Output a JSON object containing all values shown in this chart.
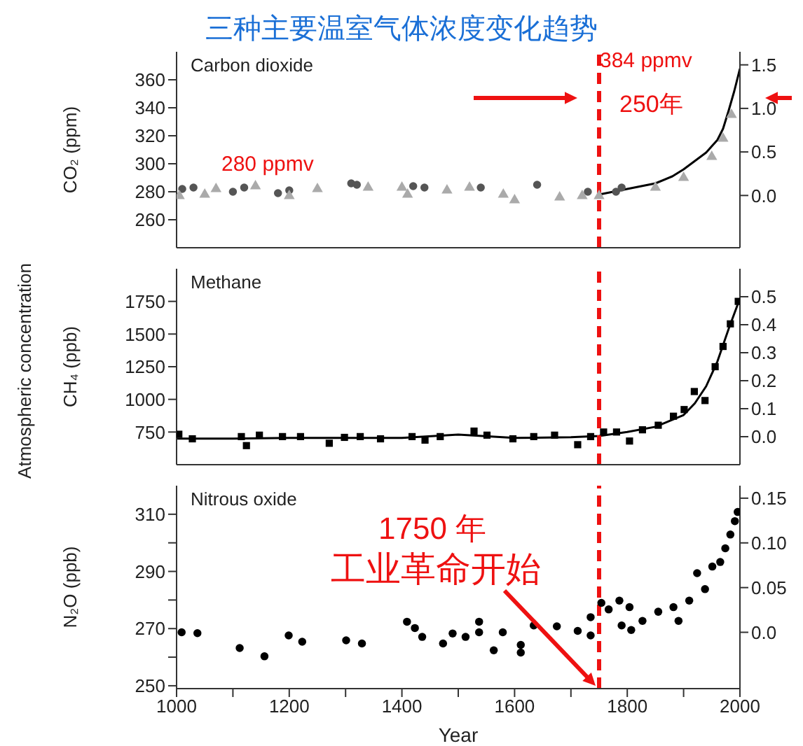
{
  "chart_data": [
    {
      "type": "scatter",
      "title": "三种主要温室气体浓度变化趋势",
      "ylabel": "CO₂ (ppm)",
      "xlim": [
        1000,
        2000
      ],
      "xticks": [
        {
          "value": 1000,
          "label": null
        },
        {
          "value": 1200,
          "label": null
        },
        {
          "value": 1400,
          "label": null
        },
        {
          "value": 1600,
          "label": null
        },
        {
          "value": 1800,
          "label": null
        },
        {
          "value": 2000,
          "label": null
        }
      ],
      "ylim": [
        240,
        380
      ],
      "yticks": [
        260,
        280,
        300,
        320,
        340,
        360
      ],
      "y2lim": [
        -0.6,
        1.65
      ],
      "y2ticks": [
        {
          "value": 0,
          "label": "0.0"
        },
        {
          "value": 0.5,
          "label": "0.5"
        },
        {
          "value": 1,
          "label": "1.0"
        },
        {
          "value": 1.5,
          "label": "1.5"
        }
      ],
      "tick_labels": "y",
      "annotations": [
        "Carbon dioxide",
        "280 ppmv",
        "384 ppmv",
        "250年"
      ],
      "ref_lines": [
        {
          "axis": "x",
          "value": 1750,
          "color": "#ee1111",
          "line_style": "dashed"
        }
      ],
      "series": [
        {
          "marker": "circle",
          "color": "#555555",
          "x": [
            1010,
            1030,
            1100,
            1120,
            1180,
            1200,
            1310,
            1320,
            1420,
            1440,
            1540,
            1640,
            1730,
            1780,
            1790
          ],
          "values": [
            282,
            283,
            280,
            283,
            279,
            281,
            286,
            285,
            284,
            283,
            283,
            285,
            280,
            280,
            283
          ]
        },
        {
          "marker": "triangle",
          "color": "#aaaaaa",
          "x": [
            1005,
            1050,
            1070,
            1140,
            1200,
            1250,
            1340,
            1400,
            1410,
            1480,
            1520,
            1580,
            1600,
            1680,
            1720,
            1750,
            1850,
            1900,
            1950,
            1970,
            1985
          ],
          "values": [
            277,
            278,
            282,
            284,
            277,
            282,
            283,
            283,
            278,
            281,
            283,
            278,
            274,
            276,
            277,
            277,
            283,
            290,
            305,
            318,
            335
          ]
        },
        {
          "type": "line",
          "color": "#000000",
          "x": [
            1750,
            1800,
            1850,
            1880,
            1900,
            1920,
            1940,
            1960,
            1970,
            1980,
            1990,
            2000
          ],
          "values": [
            278,
            282,
            286,
            291,
            296,
            302,
            308,
            317,
            325,
            338,
            352,
            368
          ]
        }
      ]
    },
    {
      "type": "scatter",
      "ylabel": "CH₄ (ppb)",
      "xlim": [
        1000,
        2000
      ],
      "xticks": [
        {
          "value": 1000,
          "label": null
        },
        {
          "value": 1200,
          "label": null
        },
        {
          "value": 1400,
          "label": null
        },
        {
          "value": 1600,
          "label": null
        },
        {
          "value": 1800,
          "label": null
        },
        {
          "value": 2000,
          "label": null
        }
      ],
      "ylim": [
        500,
        2000
      ],
      "yticks": [
        750,
        1000,
        1250,
        1500,
        1750
      ],
      "y2lim": [
        -0.1,
        0.6
      ],
      "y2ticks": [
        {
          "value": 0,
          "label": "0.0"
        },
        0.1,
        0.2,
        0.3,
        0.4,
        0.5
      ],
      "tick_labels": "y",
      "annotations": [
        "Methane",
        "Atmospheric concentration"
      ],
      "ref_lines": [
        {
          "axis": "x",
          "value": 1750,
          "color": "#ee1111",
          "line_style": "dashed"
        }
      ],
      "series": [
        {
          "marker": "square",
          "color": "#000000",
          "x": [
            1004,
            1028,
            1115,
            1124,
            1147,
            1188,
            1220,
            1271,
            1298,
            1326,
            1362,
            1418,
            1441,
            1468,
            1528,
            1551,
            1597,
            1634,
            1671,
            1712,
            1735,
            1758,
            1781,
            1804,
            1827,
            1855,
            1882,
            1901,
            1919,
            1938,
            1956,
            1970,
            1983,
            1997
          ],
          "values": [
            733,
            698,
            715,
            646,
            726,
            715,
            715,
            664,
            709,
            715,
            698,
            715,
            688,
            715,
            757,
            726,
            698,
            715,
            726,
            653,
            715,
            750,
            750,
            681,
            767,
            802,
            871,
            922,
            1060,
            991,
            1250,
            1405,
            1578,
            1750
          ]
        },
        {
          "type": "line",
          "color": "#000000",
          "x": [
            1000,
            1100,
            1200,
            1300,
            1400,
            1500,
            1600,
            1700,
            1750,
            1800,
            1850,
            1900,
            1920,
            1940,
            1960,
            1980,
            1998
          ],
          "values": [
            700,
            700,
            705,
            705,
            705,
            730,
            705,
            710,
            720,
            750,
            790,
            880,
            970,
            1100,
            1290,
            1540,
            1750
          ]
        }
      ]
    },
    {
      "type": "scatter",
      "xlabel": "Year",
      "ylabel": "N₂O (ppb)",
      "xlim": [
        1000,
        2000
      ],
      "xticks": [
        1000,
        {
          "value": 1100,
          "label": null
        },
        1200,
        {
          "value": 1300,
          "label": null
        },
        1400,
        {
          "value": 1500,
          "label": null
        },
        1600,
        {
          "value": 1700,
          "label": null
        },
        1800,
        {
          "value": 1900,
          "label": null
        },
        2000
      ],
      "ylim": [
        249,
        320
      ],
      "yticks": [
        250,
        {
          "value": 260,
          "label": null
        },
        270,
        {
          "value": 280,
          "label": null
        },
        290,
        {
          "value": 300,
          "label": null
        },
        310
      ],
      "y2lim": [
        -0.063,
        0.164
      ],
      "y2ticks": [
        {
          "value": 0,
          "label": "0.0"
        },
        0.05,
        {
          "value": 0.1,
          "label": "0.10"
        },
        0.15
      ],
      "annotations": [
        "Nitrous oxide",
        "1750 年",
        "工业革命开始"
      ],
      "ref_lines": [
        {
          "axis": "x",
          "value": 1750,
          "color": "#ee1111",
          "line_style": "dashed"
        }
      ],
      "series": [
        {
          "marker": "circle",
          "color": "#000000",
          "x": [
            1009,
            1037,
            1112,
            1156,
            1199,
            1223,
            1301,
            1329,
            1409,
            1423,
            1436,
            1473,
            1490,
            1513,
            1537,
            1537,
            1563,
            1579,
            1611,
            1611,
            1634,
            1675,
            1712,
            1735,
            1735,
            1754,
            1767,
            1786,
            1790,
            1804,
            1807,
            1827,
            1855,
            1882,
            1891,
            1910,
            1924,
            1938,
            1951,
            1965,
            1974,
            1983,
            1991,
            1996
          ],
          "values": [
            268.7,
            268.4,
            263.2,
            260.3,
            267.6,
            265.4,
            265.9,
            264.8,
            272.4,
            270.2,
            267.1,
            264.8,
            268.3,
            267.1,
            272.4,
            268.7,
            262.4,
            268.7,
            264.3,
            261.6,
            271.1,
            270.8,
            269.2,
            267.6,
            274.0,
            279.0,
            276.7,
            279.8,
            271.1,
            277.5,
            269.5,
            272.7,
            275.9,
            277.5,
            272.7,
            279.8,
            289.4,
            283.8,
            291.7,
            293.3,
            298.1,
            302.9,
            307.6,
            310.8
          ]
        }
      ]
    }
  ]
}
